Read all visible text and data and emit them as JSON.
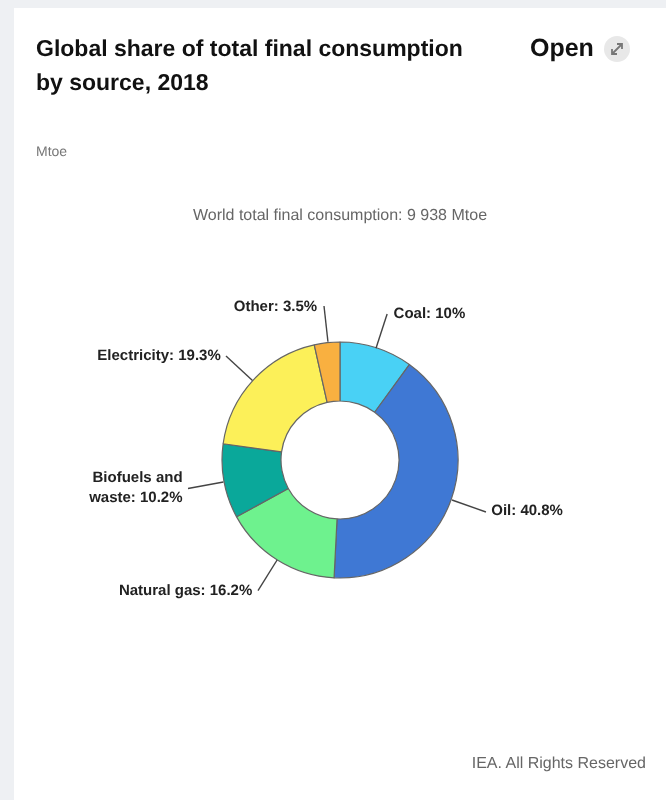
{
  "chart_data": {
    "type": "donut",
    "title": "Global share of total final consumption by source, 2018",
    "categories": [
      "Coal",
      "Oil",
      "Natural gas",
      "Biofuels and waste",
      "Electricity",
      "Other"
    ],
    "values": [
      10,
      40.8,
      16.2,
      10.2,
      19.3,
      3.5
    ],
    "value_labels": [
      "10%",
      "40.8%",
      "16.2%",
      "10.2%",
      "19.3%",
      "3.5%"
    ],
    "colors": [
      "#49d1f5",
      "#3f78d4",
      "#6ef28e",
      "#0aa89a",
      "#fcf059",
      "#f9b040"
    ],
    "legend": false,
    "annotations": [
      "Open",
      "Mtoe",
      "World total final consumption: 9 938 Mtoe",
      "IEA. All Rights Reserved"
    ]
  }
}
